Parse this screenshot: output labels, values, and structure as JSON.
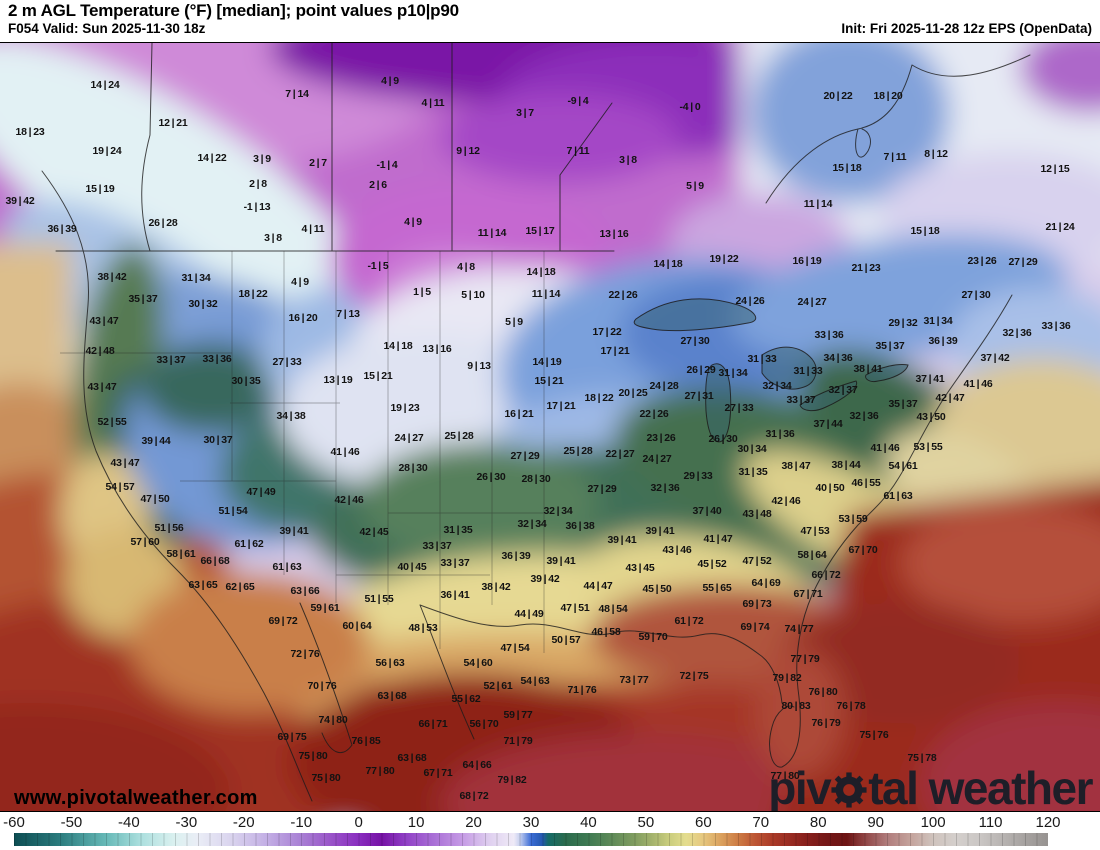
{
  "header": {
    "title": "2 m AGL Temperature (°F) [median]; point values p10|p90",
    "valid": "F054 Valid: Sun 2025-11-30 18z",
    "init": "Init: Fri 2025-11-28 12z EPS (OpenData)"
  },
  "watermark": "www.pivotalweather.com",
  "logo": {
    "before": "piv",
    "after": "tal weather",
    "gear_icon": "gear",
    "color": "#1e1e28"
  },
  "colorbar": {
    "unit": "°F",
    "min": -60,
    "max": 120,
    "tick_step": 10,
    "tick_labels": [
      "-60",
      "-50",
      "-40",
      "-30",
      "-20",
      "-10",
      "0",
      "10",
      "20",
      "30",
      "40",
      "50",
      "60",
      "70",
      "80",
      "90",
      "100",
      "110",
      "120"
    ],
    "stops": [
      {
        "t": -60,
        "c": "#0d4d53"
      },
      {
        "t": -52,
        "c": "#2b7c7e"
      },
      {
        "t": -44,
        "c": "#66b9b7"
      },
      {
        "t": -38,
        "c": "#abdfde"
      },
      {
        "t": -32,
        "c": "#dbf1f0"
      },
      {
        "t": -28,
        "c": "#eaedf6"
      },
      {
        "t": -22,
        "c": "#d9d3ee"
      },
      {
        "t": -16,
        "c": "#c3afe5"
      },
      {
        "t": -10,
        "c": "#a87fd4"
      },
      {
        "t": -5,
        "c": "#9a55c9"
      },
      {
        "t": 0,
        "c": "#8a2ec0"
      },
      {
        "t": 4,
        "c": "#7612a5"
      },
      {
        "t": 8,
        "c": "#8f3ec5"
      },
      {
        "t": 13,
        "c": "#a96fd6"
      },
      {
        "t": 18,
        "c": "#c59ae5"
      },
      {
        "t": 23,
        "c": "#e0d1f0"
      },
      {
        "t": 27,
        "c": "#efeaf7"
      },
      {
        "t": 28,
        "c": "#c9d2f0"
      },
      {
        "t": 30,
        "c": "#3b6cd6"
      },
      {
        "t": 32,
        "c": "#2458ae"
      },
      {
        "t": 33,
        "c": "#156b68"
      },
      {
        "t": 36,
        "c": "#2a6b4d"
      },
      {
        "t": 40,
        "c": "#3f7a52"
      },
      {
        "t": 44,
        "c": "#5e8a58"
      },
      {
        "t": 48,
        "c": "#809d60"
      },
      {
        "t": 51,
        "c": "#a3b26c"
      },
      {
        "t": 54,
        "c": "#c9cd7d"
      },
      {
        "t": 57,
        "c": "#e4dd8f"
      },
      {
        "t": 60,
        "c": "#e6c77e"
      },
      {
        "t": 63,
        "c": "#dba25e"
      },
      {
        "t": 66,
        "c": "#cd7c45"
      },
      {
        "t": 69,
        "c": "#bd5634"
      },
      {
        "t": 72,
        "c": "#ab3b28"
      },
      {
        "t": 75,
        "c": "#992c22"
      },
      {
        "t": 78,
        "c": "#871f1c"
      },
      {
        "t": 82,
        "c": "#731717"
      },
      {
        "t": 85,
        "c": "#6d1414"
      },
      {
        "t": 88,
        "c": "#8f4343"
      },
      {
        "t": 92,
        "c": "#b07c7c"
      },
      {
        "t": 96,
        "c": "#c4a29b"
      },
      {
        "t": 100,
        "c": "#cfc3bd"
      },
      {
        "t": 104,
        "c": "#d4cfcc"
      },
      {
        "t": 108,
        "c": "#cbc7c5"
      },
      {
        "t": 112,
        "c": "#b8b4b2"
      },
      {
        "t": 116,
        "c": "#a6a2a0"
      },
      {
        "t": 120,
        "c": "#979391"
      }
    ]
  },
  "map": {
    "points": [
      [
        105,
        84,
        "14|24"
      ],
      [
        297,
        93,
        "7|14"
      ],
      [
        30,
        131,
        "18|23"
      ],
      [
        173,
        122,
        "12|21"
      ],
      [
        107,
        150,
        "19|24"
      ],
      [
        212,
        157,
        "14|22"
      ],
      [
        262,
        158,
        "3|9"
      ],
      [
        318,
        162,
        "2|7"
      ],
      [
        100,
        188,
        "15|19"
      ],
      [
        258,
        183,
        "2|8"
      ],
      [
        257,
        206,
        "-1|13"
      ],
      [
        163,
        222,
        "26|28"
      ],
      [
        273,
        237,
        "3|8"
      ],
      [
        313,
        228,
        "4|11"
      ],
      [
        20,
        200,
        "39|42"
      ],
      [
        62,
        228,
        "36|39"
      ],
      [
        390,
        80,
        "4|9"
      ],
      [
        433,
        102,
        "4|11"
      ],
      [
        525,
        112,
        "3|7"
      ],
      [
        578,
        100,
        "-9|4"
      ],
      [
        690,
        106,
        "-4|0"
      ],
      [
        468,
        150,
        "9|12"
      ],
      [
        578,
        150,
        "7|11"
      ],
      [
        628,
        159,
        "3|8"
      ],
      [
        387,
        164,
        "-1|4"
      ],
      [
        378,
        184,
        "2|6"
      ],
      [
        695,
        185,
        "5|9"
      ],
      [
        413,
        221,
        "4|9"
      ],
      [
        492,
        232,
        "11|14"
      ],
      [
        540,
        230,
        "15|17"
      ],
      [
        614,
        233,
        "13|16"
      ],
      [
        838,
        95,
        "20|22"
      ],
      [
        888,
        95,
        "18|20"
      ],
      [
        847,
        167,
        "15|18"
      ],
      [
        895,
        156,
        "7|11"
      ],
      [
        936,
        153,
        "8|12"
      ],
      [
        1055,
        168,
        "12|15"
      ],
      [
        818,
        203,
        "11|14"
      ],
      [
        925,
        230,
        "15|18"
      ],
      [
        1060,
        226,
        "21|24"
      ],
      [
        112,
        276,
        "38|42"
      ],
      [
        196,
        277,
        "31|34"
      ],
      [
        143,
        298,
        "35|37"
      ],
      [
        203,
        303,
        "30|32"
      ],
      [
        253,
        293,
        "18|22"
      ],
      [
        300,
        281,
        "4|9"
      ],
      [
        104,
        320,
        "43|47"
      ],
      [
        303,
        317,
        "16|20"
      ],
      [
        348,
        313,
        "7|13"
      ],
      [
        100,
        350,
        "42|48"
      ],
      [
        171,
        359,
        "33|37"
      ],
      [
        217,
        358,
        "33|36"
      ],
      [
        287,
        361,
        "27|33"
      ],
      [
        246,
        380,
        "30|35"
      ],
      [
        338,
        379,
        "13|19"
      ],
      [
        378,
        375,
        "15|21"
      ],
      [
        102,
        386,
        "43|47"
      ],
      [
        112,
        421,
        "52|55"
      ],
      [
        291,
        415,
        "34|38"
      ],
      [
        156,
        440,
        "39|44"
      ],
      [
        218,
        439,
        "30|37"
      ],
      [
        378,
        265,
        "-1|5"
      ],
      [
        466,
        266,
        "4|8"
      ],
      [
        541,
        271,
        "14|18"
      ],
      [
        422,
        291,
        "1|5"
      ],
      [
        473,
        294,
        "5|10"
      ],
      [
        546,
        293,
        "11|14"
      ],
      [
        623,
        294,
        "22|26"
      ],
      [
        668,
        263,
        "14|18"
      ],
      [
        724,
        258,
        "19|22"
      ],
      [
        750,
        300,
        "24|26"
      ],
      [
        514,
        321,
        "5|9"
      ],
      [
        607,
        331,
        "17|22"
      ],
      [
        398,
        345,
        "14|18"
      ],
      [
        437,
        348,
        "13|16"
      ],
      [
        615,
        350,
        "17|21"
      ],
      [
        695,
        340,
        "27|30"
      ],
      [
        479,
        365,
        "9|13"
      ],
      [
        547,
        361,
        "14|19"
      ],
      [
        701,
        369,
        "26|29"
      ],
      [
        733,
        372,
        "31|34"
      ],
      [
        549,
        380,
        "15|21"
      ],
      [
        664,
        385,
        "24|28"
      ],
      [
        699,
        395,
        "27|31"
      ],
      [
        633,
        392,
        "20|25"
      ],
      [
        599,
        397,
        "18|22"
      ],
      [
        561,
        405,
        "17|21"
      ],
      [
        405,
        407,
        "19|23"
      ],
      [
        519,
        413,
        "16|21"
      ],
      [
        654,
        413,
        "22|26"
      ],
      [
        739,
        407,
        "27|33"
      ],
      [
        409,
        437,
        "24|27"
      ],
      [
        459,
        435,
        "25|28"
      ],
      [
        661,
        437,
        "23|26"
      ],
      [
        723,
        438,
        "26|30"
      ],
      [
        807,
        260,
        "16|19"
      ],
      [
        866,
        267,
        "21|23"
      ],
      [
        982,
        260,
        "23|26"
      ],
      [
        1023,
        261,
        "27|29"
      ],
      [
        812,
        301,
        "24|27"
      ],
      [
        976,
        294,
        "27|30"
      ],
      [
        903,
        322,
        "29|32"
      ],
      [
        938,
        320,
        "31|34"
      ],
      [
        1056,
        325,
        "33|36"
      ],
      [
        1017,
        332,
        "32|36"
      ],
      [
        829,
        334,
        "33|36"
      ],
      [
        890,
        345,
        "35|37"
      ],
      [
        943,
        340,
        "36|39"
      ],
      [
        838,
        357,
        "34|36"
      ],
      [
        995,
        357,
        "37|42"
      ],
      [
        868,
        368,
        "38|41"
      ],
      [
        762,
        358,
        "31|33"
      ],
      [
        808,
        370,
        "31|33"
      ],
      [
        777,
        385,
        "32|34"
      ],
      [
        801,
        399,
        "33|37"
      ],
      [
        843,
        389,
        "32|37"
      ],
      [
        930,
        378,
        "37|41"
      ],
      [
        978,
        383,
        "41|46"
      ],
      [
        950,
        397,
        "42|47"
      ],
      [
        903,
        403,
        "35|37"
      ],
      [
        931,
        416,
        "43|50"
      ],
      [
        864,
        415,
        "32|36"
      ],
      [
        828,
        423,
        "37|44"
      ],
      [
        780,
        433,
        "31|36"
      ],
      [
        125,
        462,
        "43|47"
      ],
      [
        120,
        486,
        "54|57"
      ],
      [
        155,
        498,
        "47|50"
      ],
      [
        261,
        491,
        "47|49"
      ],
      [
        349,
        499,
        "42|46"
      ],
      [
        233,
        510,
        "51|54"
      ],
      [
        169,
        527,
        "51|56"
      ],
      [
        294,
        530,
        "39|41"
      ],
      [
        145,
        541,
        "57|60"
      ],
      [
        181,
        553,
        "58|61"
      ],
      [
        215,
        560,
        "66|68"
      ],
      [
        249,
        543,
        "61|62"
      ],
      [
        287,
        566,
        "61|63"
      ],
      [
        203,
        584,
        "63|65"
      ],
      [
        240,
        586,
        "62|65"
      ],
      [
        305,
        590,
        "63|66"
      ],
      [
        325,
        607,
        "59|61"
      ],
      [
        283,
        620,
        "69|72"
      ],
      [
        357,
        625,
        "60|64"
      ],
      [
        345,
        451,
        "41|46"
      ],
      [
        413,
        467,
        "28|30"
      ],
      [
        525,
        455,
        "27|29"
      ],
      [
        578,
        450,
        "25|28"
      ],
      [
        620,
        453,
        "22|27"
      ],
      [
        657,
        458,
        "24|27"
      ],
      [
        491,
        476,
        "26|30"
      ],
      [
        536,
        478,
        "28|30"
      ],
      [
        698,
        475,
        "29|33"
      ],
      [
        602,
        488,
        "27|29"
      ],
      [
        665,
        487,
        "32|36"
      ],
      [
        558,
        510,
        "32|34"
      ],
      [
        532,
        523,
        "32|34"
      ],
      [
        580,
        525,
        "36|38"
      ],
      [
        707,
        510,
        "37|40"
      ],
      [
        374,
        531,
        "42|45"
      ],
      [
        458,
        529,
        "31|35"
      ],
      [
        660,
        530,
        "39|41"
      ],
      [
        622,
        539,
        "39|41"
      ],
      [
        437,
        545,
        "33|37"
      ],
      [
        718,
        538,
        "41|47"
      ],
      [
        677,
        549,
        "43|46"
      ],
      [
        455,
        562,
        "33|37"
      ],
      [
        412,
        566,
        "40|45"
      ],
      [
        516,
        555,
        "36|39"
      ],
      [
        561,
        560,
        "39|41"
      ],
      [
        712,
        563,
        "45|52"
      ],
      [
        640,
        567,
        "43|45"
      ],
      [
        545,
        578,
        "39|42"
      ],
      [
        496,
        586,
        "38|42"
      ],
      [
        598,
        585,
        "44|47"
      ],
      [
        657,
        588,
        "45|50"
      ],
      [
        717,
        587,
        "55|65"
      ],
      [
        455,
        594,
        "36|41"
      ],
      [
        379,
        598,
        "51|55"
      ],
      [
        529,
        613,
        "44|49"
      ],
      [
        575,
        607,
        "47|51"
      ],
      [
        613,
        608,
        "48|54"
      ],
      [
        423,
        627,
        "48|53"
      ],
      [
        606,
        631,
        "46|58"
      ],
      [
        566,
        639,
        "50|57"
      ],
      [
        752,
        448,
        "30|34"
      ],
      [
        753,
        471,
        "31|35"
      ],
      [
        757,
        513,
        "43|48"
      ],
      [
        757,
        560,
        "47|52"
      ],
      [
        885,
        447,
        "41|46"
      ],
      [
        928,
        446,
        "53|55"
      ],
      [
        796,
        465,
        "38|47"
      ],
      [
        846,
        464,
        "38|44"
      ],
      [
        903,
        465,
        "54|61"
      ],
      [
        866,
        482,
        "46|55"
      ],
      [
        830,
        487,
        "40|50"
      ],
      [
        786,
        500,
        "42|46"
      ],
      [
        898,
        495,
        "61|63"
      ],
      [
        853,
        518,
        "53|59"
      ],
      [
        815,
        530,
        "47|53"
      ],
      [
        812,
        554,
        "58|64"
      ],
      [
        863,
        549,
        "67|70"
      ],
      [
        826,
        574,
        "66|72"
      ],
      [
        766,
        582,
        "64|69"
      ],
      [
        808,
        593,
        "67|71"
      ],
      [
        757,
        603,
        "69|73"
      ],
      [
        799,
        628,
        "74|77"
      ],
      [
        755,
        626,
        "69|74"
      ],
      [
        689,
        620,
        "61|72"
      ],
      [
        653,
        636,
        "59|70"
      ],
      [
        305,
        653,
        "72|76"
      ],
      [
        322,
        685,
        "70|76"
      ],
      [
        333,
        719,
        "74|80"
      ],
      [
        292,
        736,
        "69|75"
      ],
      [
        366,
        740,
        "76|85"
      ],
      [
        313,
        755,
        "75|80"
      ],
      [
        326,
        777,
        "75|80"
      ],
      [
        515,
        647,
        "47|54"
      ],
      [
        478,
        662,
        "54|60"
      ],
      [
        390,
        662,
        "56|63"
      ],
      [
        392,
        695,
        "63|68"
      ],
      [
        498,
        685,
        "52|61"
      ],
      [
        535,
        680,
        "54|63"
      ],
      [
        466,
        698,
        "55|62"
      ],
      [
        582,
        689,
        "71|76"
      ],
      [
        634,
        679,
        "73|77"
      ],
      [
        694,
        675,
        "72|75"
      ],
      [
        518,
        714,
        "59|77"
      ],
      [
        433,
        723,
        "66|71"
      ],
      [
        484,
        723,
        "56|70"
      ],
      [
        518,
        740,
        "71|79"
      ],
      [
        412,
        757,
        "63|68"
      ],
      [
        477,
        764,
        "64|66"
      ],
      [
        438,
        772,
        "67|71"
      ],
      [
        380,
        770,
        "77|80"
      ],
      [
        512,
        779,
        "79|82"
      ],
      [
        474,
        795,
        "68|72"
      ],
      [
        805,
        658,
        "77|79"
      ],
      [
        787,
        677,
        "79|82"
      ],
      [
        823,
        691,
        "76|80"
      ],
      [
        796,
        705,
        "80|83"
      ],
      [
        851,
        705,
        "76|78"
      ],
      [
        826,
        722,
        "76|79"
      ],
      [
        874,
        734,
        "75|76"
      ],
      [
        922,
        757,
        "75|78"
      ],
      [
        785,
        775,
        "77|80"
      ]
    ]
  }
}
